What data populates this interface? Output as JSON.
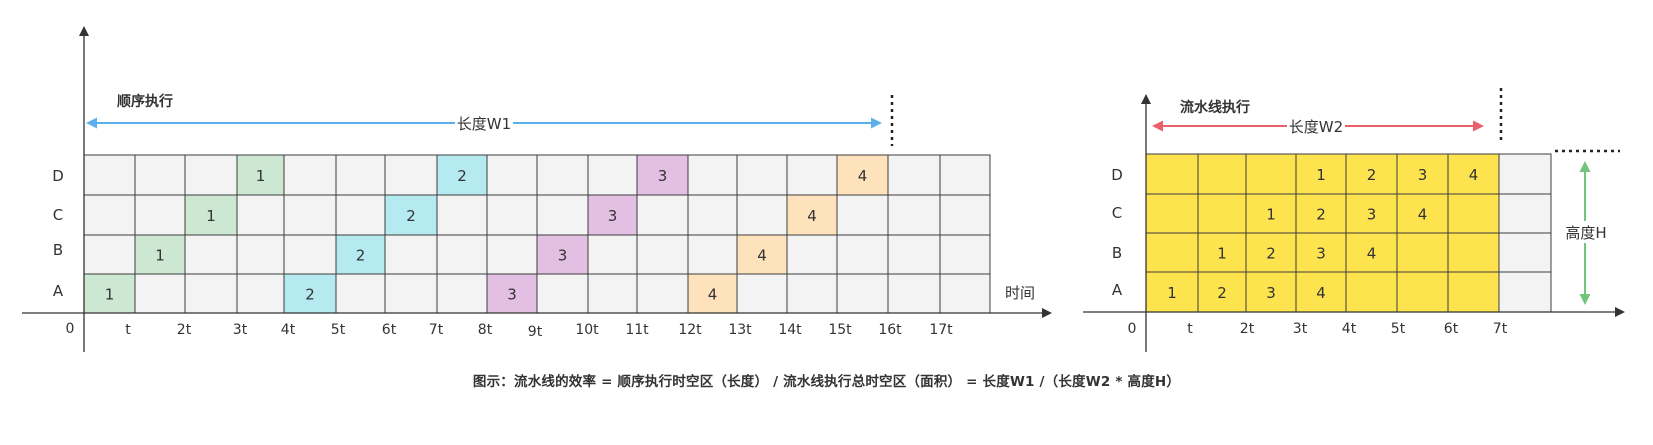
{
  "colors": {
    "axis": "#333333",
    "grid_line": "#3d3d3d",
    "cell_empty": "#f3f3f3",
    "task1": "#cde8d2",
    "task2": "#b5eaf0",
    "task3": "#e2bfe3",
    "task4": "#fde2bc",
    "pipeline_cell": "#fde44f",
    "arrow_w1": "#5bb0ec",
    "arrow_w2": "#e9606b",
    "arrow_h": "#72c37c"
  },
  "left_diagram": {
    "title": "顺序执行",
    "width_label": "长度W1",
    "x_axis_label": "时间",
    "origin_label": "0",
    "stage_labels": [
      "A",
      "B",
      "C",
      "D"
    ],
    "tick_labels": [
      "t",
      "2t",
      "3t",
      "4t",
      "5t",
      "6t",
      "7t",
      "8t",
      "9t",
      "10t",
      "11t",
      "12t",
      "13t",
      "14t",
      "15t",
      "16t",
      "17t"
    ],
    "cells": [
      {
        "stage": "A",
        "slot": 0,
        "task": "1"
      },
      {
        "stage": "B",
        "slot": 1,
        "task": "1"
      },
      {
        "stage": "C",
        "slot": 2,
        "task": "1"
      },
      {
        "stage": "D",
        "slot": 3,
        "task": "1"
      },
      {
        "stage": "A",
        "slot": 4,
        "task": "2"
      },
      {
        "stage": "B",
        "slot": 5,
        "task": "2"
      },
      {
        "stage": "C",
        "slot": 6,
        "task": "2"
      },
      {
        "stage": "D",
        "slot": 7,
        "task": "2"
      },
      {
        "stage": "A",
        "slot": 8,
        "task": "3"
      },
      {
        "stage": "B",
        "slot": 9,
        "task": "3"
      },
      {
        "stage": "C",
        "slot": 10,
        "task": "3"
      },
      {
        "stage": "D",
        "slot": 11,
        "task": "3"
      },
      {
        "stage": "A",
        "slot": 12,
        "task": "4"
      },
      {
        "stage": "B",
        "slot": 13,
        "task": "4"
      },
      {
        "stage": "C",
        "slot": 14,
        "task": "4"
      },
      {
        "stage": "D",
        "slot": 15,
        "task": "4"
      }
    ]
  },
  "right_diagram": {
    "title": "流水线执行",
    "width_label": "长度W2",
    "height_label": "高度H",
    "origin_label": "0",
    "stage_labels": [
      "A",
      "B",
      "C",
      "D"
    ],
    "tick_labels": [
      "t",
      "2t",
      "3t",
      "4t",
      "5t",
      "6t",
      "7t"
    ],
    "cells": [
      {
        "stage": "A",
        "slot": 0,
        "task": "1"
      },
      {
        "stage": "A",
        "slot": 1,
        "task": "2"
      },
      {
        "stage": "A",
        "slot": 2,
        "task": "3"
      },
      {
        "stage": "A",
        "slot": 3,
        "task": "4"
      },
      {
        "stage": "B",
        "slot": 1,
        "task": "1"
      },
      {
        "stage": "B",
        "slot": 2,
        "task": "2"
      },
      {
        "stage": "B",
        "slot": 3,
        "task": "3"
      },
      {
        "stage": "B",
        "slot": 4,
        "task": "4"
      },
      {
        "stage": "C",
        "slot": 2,
        "task": "1"
      },
      {
        "stage": "C",
        "slot": 3,
        "task": "2"
      },
      {
        "stage": "C",
        "slot": 4,
        "task": "3"
      },
      {
        "stage": "C",
        "slot": 5,
        "task": "4"
      },
      {
        "stage": "D",
        "slot": 3,
        "task": "1"
      },
      {
        "stage": "D",
        "slot": 4,
        "task": "2"
      },
      {
        "stage": "D",
        "slot": 5,
        "task": "3"
      },
      {
        "stage": "D",
        "slot": 6,
        "task": "4"
      }
    ]
  },
  "caption": "图示：流水线的效率 = 顺序执行时空区（长度） / 流水线执行总时空区（面积） = 长度W1  /（长度W2 * 高度H）"
}
